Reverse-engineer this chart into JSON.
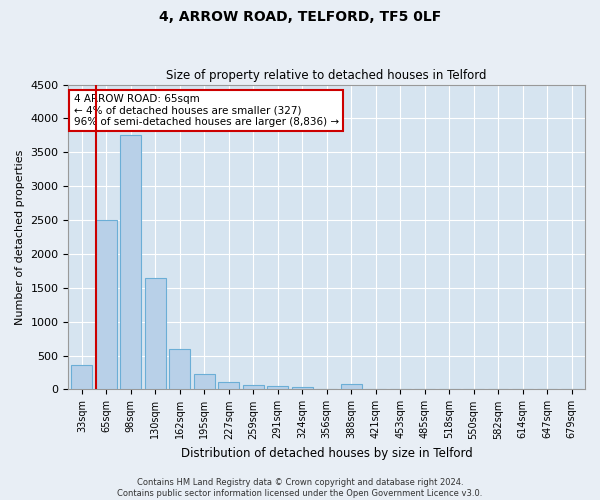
{
  "title": "4, ARROW ROAD, TELFORD, TF5 0LF",
  "subtitle": "Size of property relative to detached houses in Telford",
  "xlabel": "Distribution of detached houses by size in Telford",
  "ylabel": "Number of detached properties",
  "categories": [
    "33sqm",
    "65sqm",
    "98sqm",
    "130sqm",
    "162sqm",
    "195sqm",
    "227sqm",
    "259sqm",
    "291sqm",
    "324sqm",
    "356sqm",
    "388sqm",
    "421sqm",
    "453sqm",
    "485sqm",
    "518sqm",
    "550sqm",
    "582sqm",
    "614sqm",
    "647sqm",
    "679sqm"
  ],
  "values": [
    360,
    2500,
    3750,
    1640,
    590,
    225,
    110,
    65,
    50,
    40,
    0,
    75,
    0,
    0,
    0,
    0,
    0,
    0,
    0,
    0,
    0
  ],
  "bar_color": "#b8d0e8",
  "bar_edge_color": "#6baed6",
  "highlight_bar_index": 1,
  "annotation_text": "4 ARROW ROAD: 65sqm\n← 4% of detached houses are smaller (327)\n96% of semi-detached houses are larger (8,836) →",
  "annotation_box_color": "#ffffff",
  "annotation_box_edge_color": "#cc0000",
  "ylim": [
    0,
    4500
  ],
  "yticks": [
    0,
    500,
    1000,
    1500,
    2000,
    2500,
    3000,
    3500,
    4000,
    4500
  ],
  "bg_color": "#d6e4f0",
  "grid_color": "#ffffff",
  "fig_bg_color": "#e8eef5",
  "footer": "Contains HM Land Registry data © Crown copyright and database right 2024.\nContains public sector information licensed under the Open Government Licence v3.0."
}
